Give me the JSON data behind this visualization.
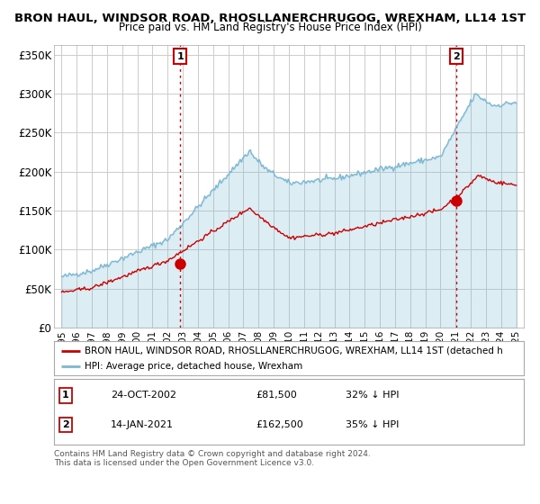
{
  "title": "BRON HAUL, WINDSOR ROAD, RHOSLLANERCHRUGOG, WREXHAM, LL14 1ST",
  "subtitle": "Price paid vs. HM Land Registry's House Price Index (HPI)",
  "ylabel_ticks": [
    "£0",
    "£50K",
    "£100K",
    "£150K",
    "£200K",
    "£250K",
    "£300K",
    "£350K"
  ],
  "ytick_values": [
    0,
    50000,
    100000,
    150000,
    200000,
    250000,
    300000,
    350000
  ],
  "ylim": [
    0,
    362000
  ],
  "hpi_color": "#7ab8d4",
  "hpi_fill_color": "#d6eaf5",
  "price_color": "#cc0000",
  "legend_label_price": "BRON HAUL, WINDSOR ROAD, RHOSLLANERCHRUGOG, WREXHAM, LL14 1ST (detached h",
  "legend_label_hpi": "HPI: Average price, detached house, Wrexham",
  "annotation1_label": "1",
  "annotation1_date": "24-OCT-2002",
  "annotation1_price": "£81,500",
  "annotation1_pct": "32% ↓ HPI",
  "annotation2_label": "2",
  "annotation2_date": "14-JAN-2021",
  "annotation2_price": "£162,500",
  "annotation2_pct": "35% ↓ HPI",
  "footer": "Contains HM Land Registry data © Crown copyright and database right 2024.\nThis data is licensed under the Open Government Licence v3.0.",
  "background_color": "#ffffff",
  "plot_bg_color": "#ffffff",
  "grid_color": "#cccccc",
  "sale1_x": 2002.82,
  "sale1_y": 81500,
  "sale2_x": 2021.04,
  "sale2_y": 162500,
  "xlim_min": 1994.5,
  "xlim_max": 2025.5
}
